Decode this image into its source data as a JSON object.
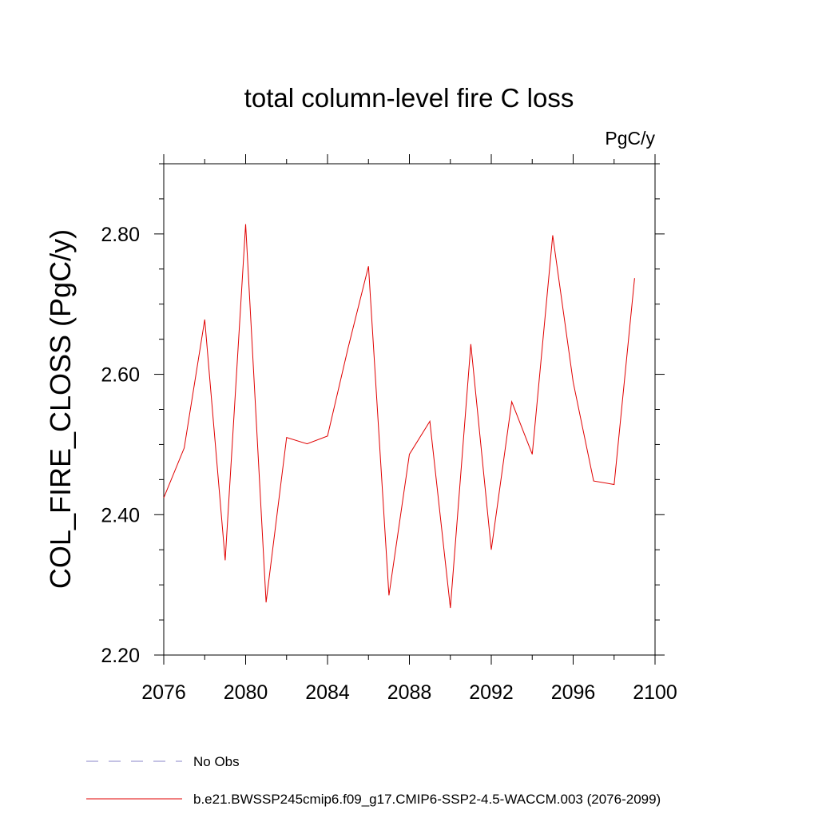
{
  "chart_data": {
    "type": "line",
    "title": "total column-level fire C loss",
    "units_label": "PgC/y",
    "ylabel": "COL_FIRE_CLOSS  (PgC/y)",
    "xlabel": "",
    "xlim": [
      2076,
      2100
    ],
    "ylim": [
      2.2,
      2.9
    ],
    "x_ticks": [
      2076,
      2080,
      2084,
      2088,
      2092,
      2096,
      2100
    ],
    "x_tick_labels": [
      "2076",
      "2080",
      "2084",
      "2088",
      "2092",
      "2096",
      "2100"
    ],
    "x_minor_step": 2,
    "y_ticks": [
      2.2,
      2.4,
      2.6,
      2.8
    ],
    "y_tick_labels": [
      "2.20",
      "2.40",
      "2.60",
      "2.80"
    ],
    "y_minor_step": 0.05,
    "grid": false,
    "legend_position": "bottom-left",
    "series": [
      {
        "name": "b.e21.BWSSP245cmip6.f09_g17.CMIP6-SSP2-4.5-WACCM.003 (2076-2099)",
        "color": "#e00000",
        "style": "solid",
        "x": [
          2076,
          2077,
          2078,
          2079,
          2080,
          2081,
          2082,
          2083,
          2084,
          2085,
          2086,
          2087,
          2088,
          2089,
          2090,
          2091,
          2092,
          2093,
          2094,
          2095,
          2096,
          2097,
          2098,
          2099
        ],
        "y": [
          2.424,
          2.495,
          2.678,
          2.335,
          2.814,
          2.275,
          2.51,
          2.501,
          2.512,
          2.637,
          2.754,
          2.285,
          2.486,
          2.533,
          2.267,
          2.643,
          2.35,
          2.561,
          2.486,
          2.798,
          2.589,
          2.448,
          2.443,
          2.737
        ]
      }
    ],
    "legend": [
      {
        "label": "No Obs",
        "color": "#8a84c8",
        "style": "dashed"
      },
      {
        "label": "b.e21.BWSSP245cmip6.f09_g17.CMIP6-SSP2-4.5-WACCM.003 (2076-2099)",
        "color": "#e00000",
        "style": "solid"
      }
    ]
  }
}
